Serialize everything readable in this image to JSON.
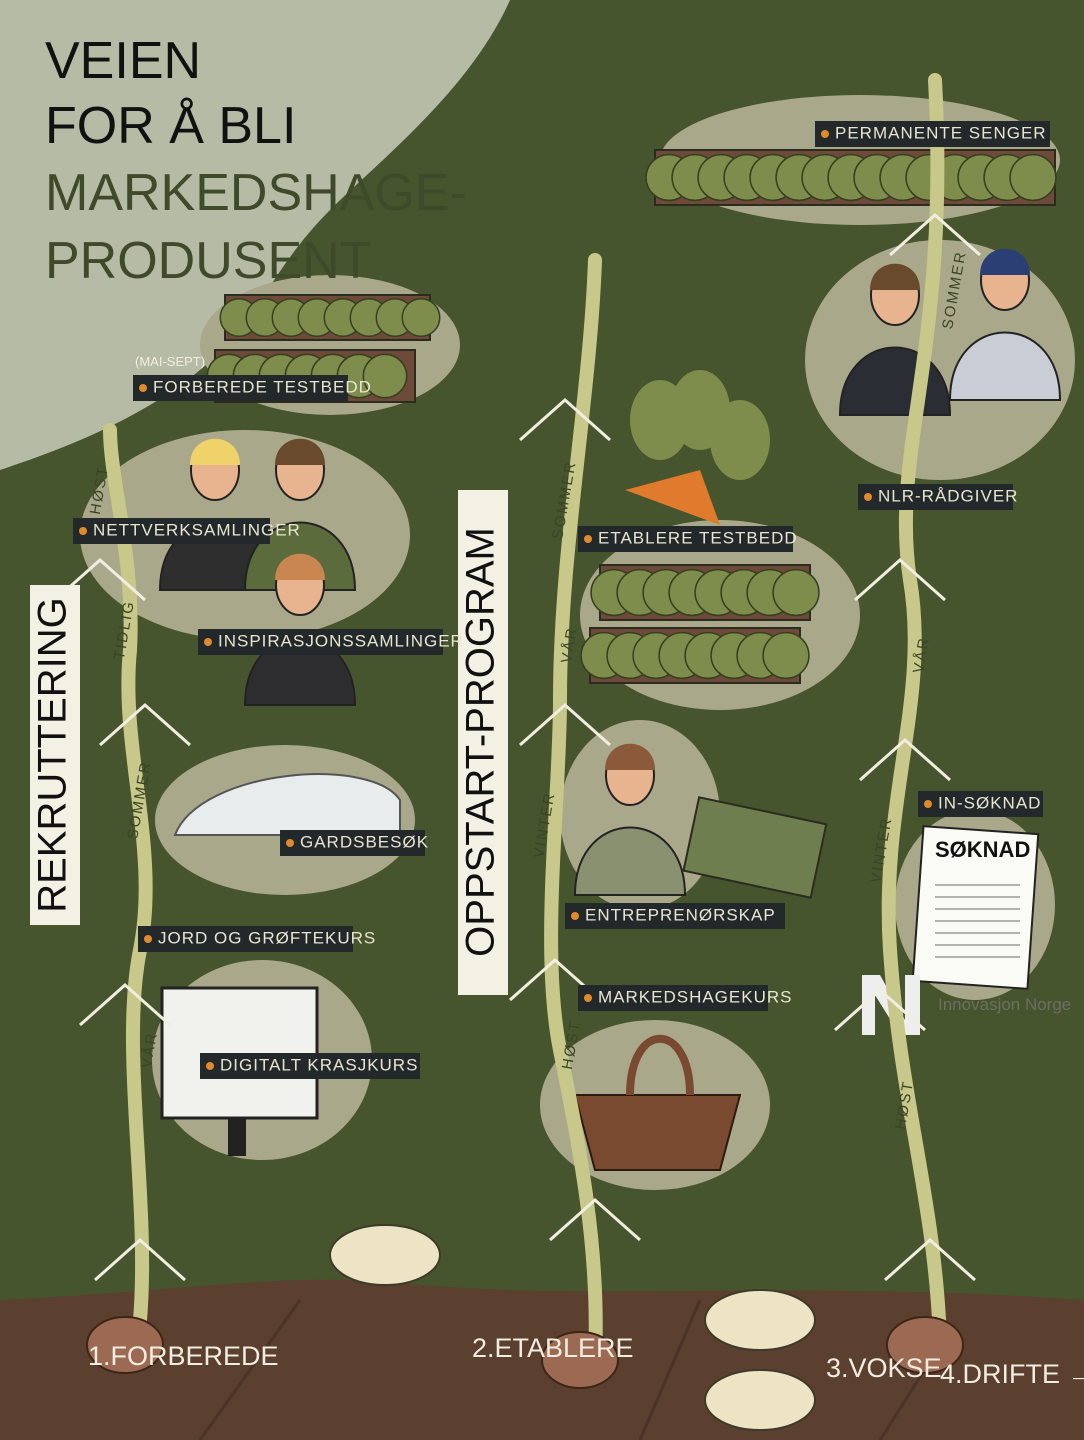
{
  "title": {
    "lines": [
      "VEIEN",
      "FOR Å BLI",
      "MARKEDSHAGE-",
      "PRODUSENT"
    ]
  },
  "sections": [
    "REKRUTTERING",
    "OPPSTART-PROGRAM"
  ],
  "note": "(MAI-SEPT)",
  "activities": [
    "FORBEREDE TESTBEDD",
    "NETTVERKSAMLINGER",
    "INSPIRASJONSSAMLINGER",
    "GARDSBESØK",
    "JORD OG GRØFTEKURS",
    "DIGITALT KRASJKURS",
    "PERMANENTE SENGER",
    "ETABLERE TESTBEDD",
    "NLR-RÅDGIVER",
    "IN-SØKNAD",
    "ENTREPRENØRSKAP",
    "MARKEDSHAGEKURS"
  ],
  "seasons": [
    "VÅR",
    "SOMMER",
    "TIDLIG",
    "HØST",
    "HØST",
    "VINTER",
    "VÅR",
    "SOMMER",
    "HØST",
    "VINTER",
    "VÅR",
    "SOMMER"
  ],
  "stages": [
    "1.FORBEREDE",
    "2.ETABLERE",
    "3.VOKSE",
    "4.DRIFTE →"
  ],
  "document": {
    "heading": "SØKNAD"
  },
  "logo": "Innovasjon Norge"
}
